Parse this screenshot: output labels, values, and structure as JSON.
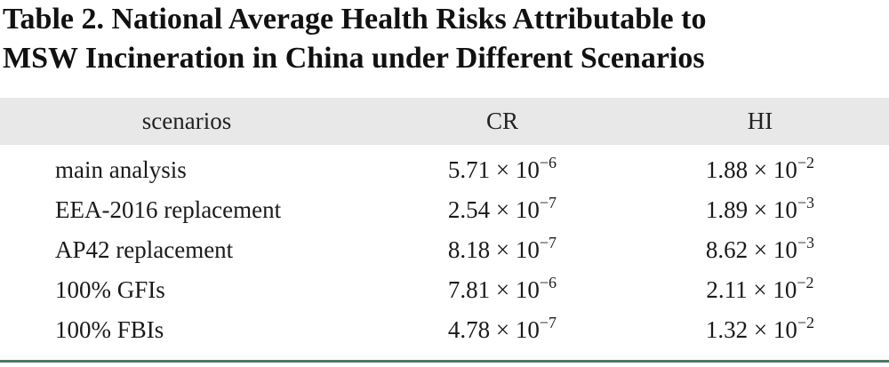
{
  "caption": {
    "line1": "Table 2. National Average Health Risks Attributable to",
    "line2": "MSW Incineration in China under Different Scenarios"
  },
  "table": {
    "headers": [
      "scenarios",
      "CR",
      "HI"
    ],
    "rows": [
      {
        "scenario": "main analysis",
        "cr": {
          "mantissa": "5.71 × 10",
          "exponent": "−6"
        },
        "hi": {
          "mantissa": "1.88 × 10",
          "exponent": "−2"
        }
      },
      {
        "scenario": "EEA-2016 replacement",
        "cr": {
          "mantissa": "2.54 × 10",
          "exponent": "−7"
        },
        "hi": {
          "mantissa": "1.89 × 10",
          "exponent": "−3"
        }
      },
      {
        "scenario": "AP42 replacement",
        "cr": {
          "mantissa": "8.18 × 10",
          "exponent": "−7"
        },
        "hi": {
          "mantissa": "8.62 × 10",
          "exponent": "−3"
        }
      },
      {
        "scenario": "100% GFIs",
        "cr": {
          "mantissa": "7.81 × 10",
          "exponent": "−6"
        },
        "hi": {
          "mantissa": "2.11 × 10",
          "exponent": "−2"
        }
      },
      {
        "scenario": "100% FBIs",
        "cr": {
          "mantissa": "4.78 × 10",
          "exponent": "−7"
        },
        "hi": {
          "mantissa": "1.32 × 10",
          "exponent": "−2"
        }
      }
    ]
  },
  "colors": {
    "header_band": "#e8e8e8",
    "bottom_rule": "#4a7a5e"
  }
}
